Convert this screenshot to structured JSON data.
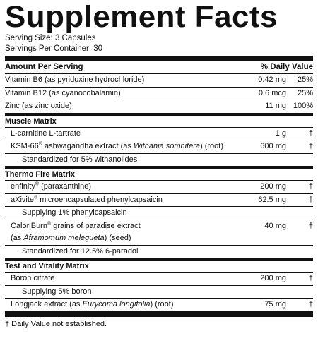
{
  "title": "Supplement Facts",
  "serving_size": "Serving Size: 3 Capsules",
  "servings_per_container": "Servings Per Container: 30",
  "header": {
    "amount": "Amount Per Serving",
    "dv": "% Daily Value"
  },
  "vitamins": [
    {
      "name": "Vitamin B6 (as pyridoxine hydrochloride)",
      "amount": "0.42 mg",
      "dv": "25%"
    },
    {
      "name": "Vitamin B12 (as cyanocobalamin)",
      "amount": "0.6 mcg",
      "dv": "25%"
    },
    {
      "name": "Zinc (as zinc oxide)",
      "amount": "11 mg",
      "dv": "100%"
    }
  ],
  "muscle": {
    "title": "Muscle Matrix",
    "lcarnitine": {
      "name": "L-carnitine L-tartrate",
      "amount": "1 g",
      "dv": "†"
    },
    "ksm": {
      "name_a": "KSM-66",
      "reg": "®",
      "name_b": " ashwagandha extract (as ",
      "name_it": "Withania somnifera",
      "name_c": ") (root)",
      "amount": "600 mg",
      "dv": "†"
    },
    "ksm_std": "Standardized for 5% withanolides"
  },
  "thermo": {
    "title": "Thermo Fire Matrix",
    "enfinity": {
      "name_a": "enfinity",
      "reg": "®",
      "name_b": " (paraxanthine)",
      "amount": "200 mg",
      "dv": "†"
    },
    "axivite": {
      "name_a": "aXivite",
      "reg": "®",
      "name_b": " microencapsulated phenylcapsaicin",
      "amount": "62.5 mg",
      "dv": "†"
    },
    "axivite_sub": "Supplying 1% phenylcapsaicin",
    "caloriburn": {
      "name_a": "CaloriBurn",
      "reg": "®",
      "name_b": " grains of paradise extract",
      "line2_a": "(as ",
      "line2_it": "Aframomum melegueta",
      "line2_b": ") (seed)",
      "amount": "40 mg",
      "dv": "†"
    },
    "caloriburn_std": "Standardized for 12.5% 6-paradol"
  },
  "vitality": {
    "title": "Test and Vitality Matrix",
    "boron": {
      "name": "Boron citrate",
      "amount": "200 mg",
      "dv": "†"
    },
    "boron_sub": "Supplying 5% boron",
    "longjack": {
      "name_a": "Longjack extract (as ",
      "name_it": "Eurycoma longifolia",
      "name_b": ") (root)",
      "amount": "75 mg",
      "dv": "†"
    }
  },
  "footnote": "† Daily Value not established."
}
